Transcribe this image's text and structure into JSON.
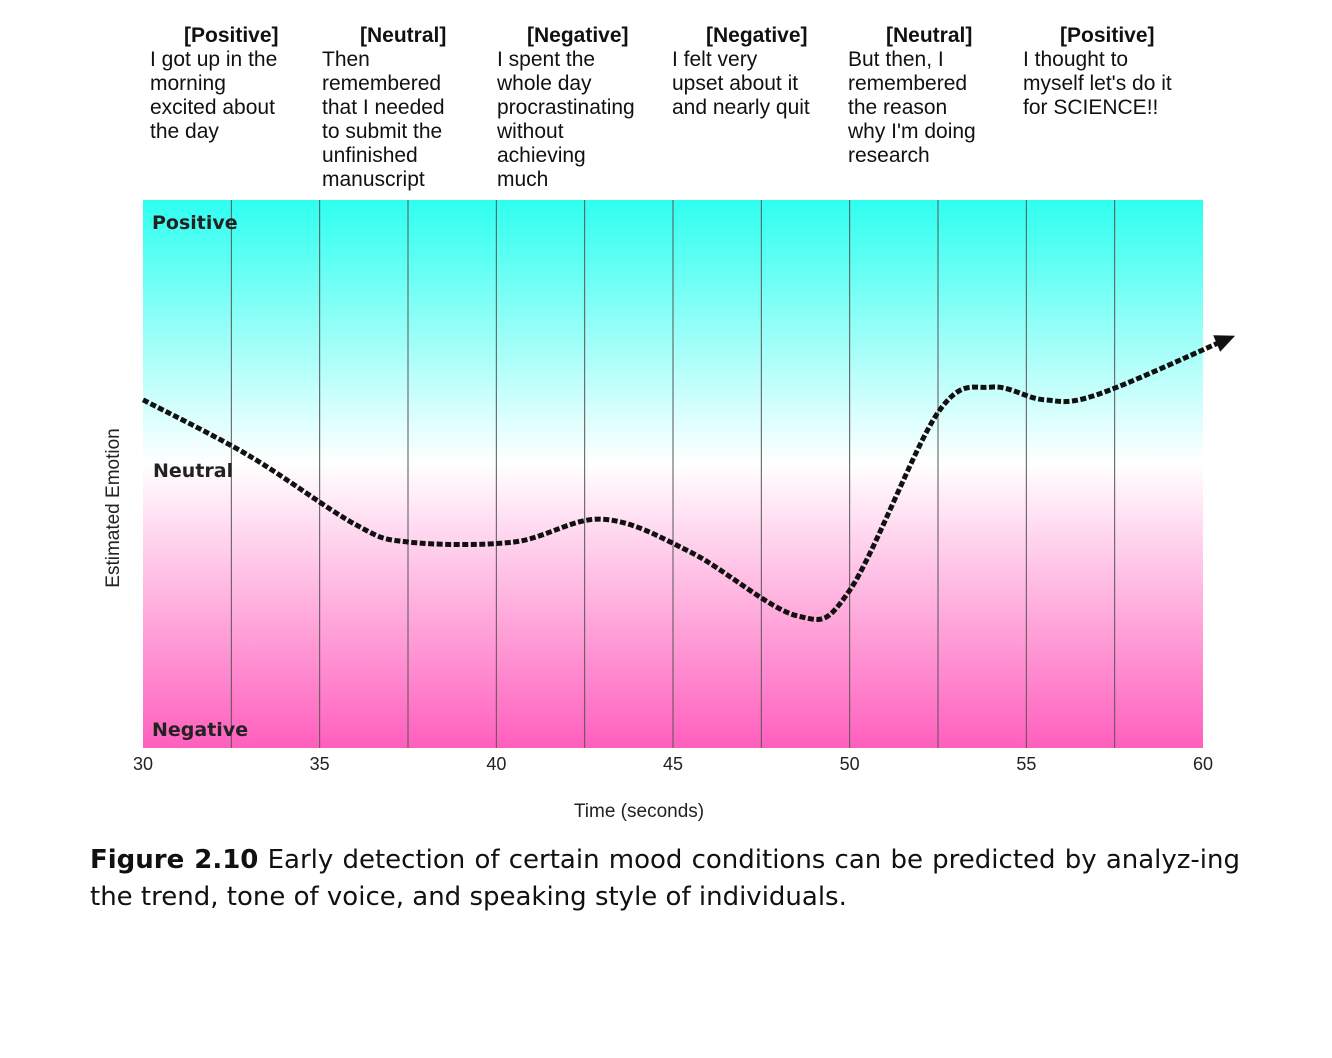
{
  "annotations": [
    {
      "sentiment": "[Positive]",
      "text": "I got up in the\nmorning\nexcited about\nthe day"
    },
    {
      "sentiment": "[Neutral]",
      "text": "Then\nremembered\nthat I needed\nto submit the\nunfinished\nmanuscript"
    },
    {
      "sentiment": "[Negative]",
      "text": "I spent the\nwhole day\nprocrastinating\nwithout\nachieving\nmuch"
    },
    {
      "sentiment": "[Negative]",
      "text": "I felt very\nupset about it\nand nearly quit"
    },
    {
      "sentiment": "[Neutral]",
      "text": "But then, I\nremembered\nthe reason\nwhy I'm doing\nresearch"
    },
    {
      "sentiment": "[Positive]",
      "text": "I thought to\nmyself let's do it\nfor SCIENCE!!"
    }
  ],
  "caption": {
    "label": "Figure 2.10",
    "text": " Early detection of certain mood conditions can be predicted by analyz-ing the trend, tone of voice, and speaking style of individuals."
  },
  "colors": {
    "top": "#2efff0",
    "middle": "#ffffff",
    "bottom": "#ff5fbd",
    "line": "#111111"
  },
  "chart_data": {
    "type": "line",
    "xlabel": "Time (seconds)",
    "ylabel": "Estimated Emotion",
    "xlim": [
      30,
      60
    ],
    "xticks": [
      30,
      35,
      40,
      45,
      50,
      55,
      60
    ],
    "yticklabels": [
      "Positive",
      "Neutral",
      "Negative"
    ],
    "ylim": [
      -1,
      1
    ],
    "grid": "vertical",
    "series": [
      {
        "x": [
          30,
          33,
          36,
          37.5,
          40.5,
          43,
          45.5,
          48.5,
          50,
          52.5,
          54,
          55.5,
          57,
          60.7
        ],
        "y": [
          0.3,
          0.08,
          -0.19,
          -0.26,
          -0.26,
          -0.17,
          -0.3,
          -0.55,
          -0.45,
          0.25,
          0.35,
          0.3,
          0.32,
          0.54
        ]
      }
    ]
  }
}
